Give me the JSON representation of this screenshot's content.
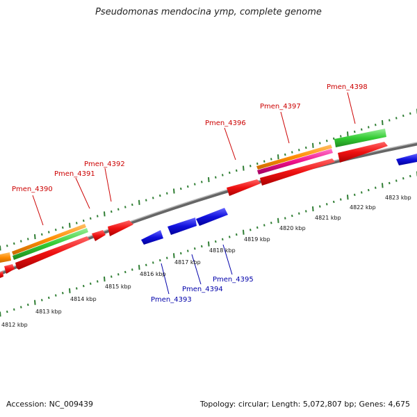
{
  "header": {
    "title": "Pseudomonas mendocina ymp, complete genome"
  },
  "footer": {
    "accession": "Accession: NC_009439",
    "summary": "Topology: circular; Length: 5,072,807 bp; Genes: 4,675"
  },
  "genes": {
    "forward": [
      {
        "name": "Pmen_4390"
      },
      {
        "name": "Pmen_4391"
      },
      {
        "name": "Pmen_4392"
      },
      {
        "name": "Pmen_4396"
      },
      {
        "name": "Pmen_4397"
      },
      {
        "name": "Pmen_4398"
      }
    ],
    "reverse": [
      {
        "name": "Pmen_4393"
      },
      {
        "name": "Pmen_4394"
      },
      {
        "name": "Pmen_4395"
      }
    ]
  },
  "scale": {
    "ticks": [
      "4812 kbp",
      "4813 kbp",
      "4814 kbp",
      "4815 kbp",
      "4816 kbp",
      "4817 kbp",
      "4818 kbp",
      "4819 kbp",
      "4820 kbp",
      "4821 kbp",
      "4822 kbp",
      "4823 kbp"
    ]
  },
  "colors": {
    "forward_cds": "#ee1111",
    "reverse_cds": "#1111dd",
    "orange_track": "#ff8c00",
    "green_track": "#33cc33",
    "pink_track": "#ee1188",
    "backbone": "#888888",
    "tick": "#2e7d32"
  }
}
